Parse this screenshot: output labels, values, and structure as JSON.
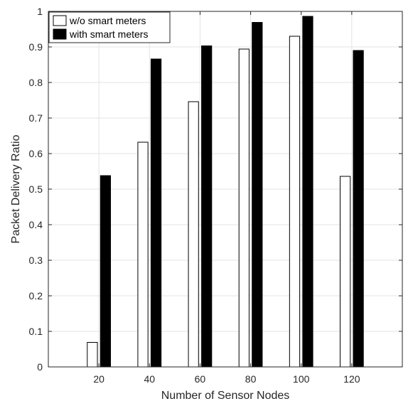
{
  "chart_data": {
    "type": "bar",
    "categories": [
      "20",
      "40",
      "60",
      "80",
      "100",
      "120"
    ],
    "series": [
      {
        "name": "w/o smart meters",
        "values": [
          0.069,
          0.632,
          0.746,
          0.894,
          0.93,
          0.536
        ],
        "color": "#ffffff"
      },
      {
        "name": "with smart meters",
        "values": [
          0.538,
          0.866,
          0.903,
          0.969,
          0.986,
          0.89
        ],
        "color": "#000000"
      }
    ],
    "xlabel": "Number of Sensor Nodes",
    "ylabel": "Packet Delivery Ratio",
    "ylim": [
      0,
      1
    ],
    "yticks": [
      "0",
      "0.1",
      "0.2",
      "0.3",
      "0.4",
      "0.5",
      "0.6",
      "0.7",
      "0.8",
      "0.9",
      "1"
    ],
    "grid": true,
    "legend_position": "top-left"
  }
}
